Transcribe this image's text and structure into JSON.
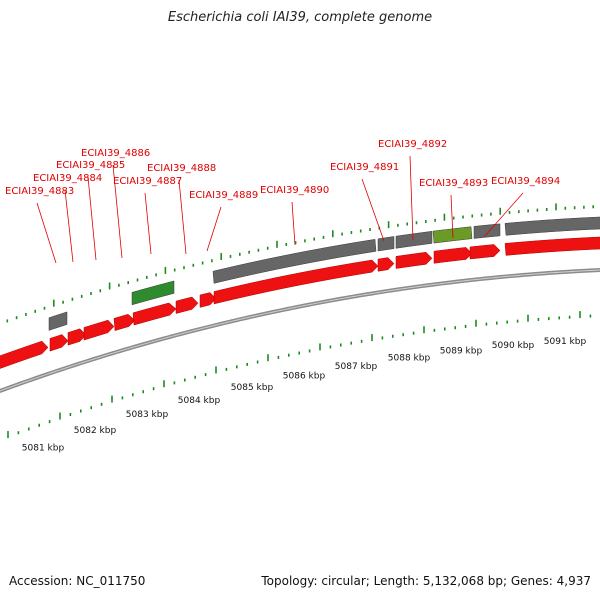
{
  "title": "Escherichia coli IAI39, complete genome",
  "footer": {
    "accession": "Accession: NC_011750",
    "summary": "Topology: circular; Length: 5,132,068 bp; Genes: 4,937"
  },
  "colors": {
    "gene_label": "#e00000",
    "forward_cds": "#ee1111",
    "reverse_gene": "#666666",
    "reverse_rna": "#2e8b2e",
    "highlight": "#6b9a25",
    "tick": "#1f8a1f",
    "track_line": "#8c8c8c"
  },
  "scale": {
    "unit": "kbp",
    "labels": [
      "5081 kbp",
      "5082 kbp",
      "5083 kbp",
      "5084 kbp",
      "5085 kbp",
      "5086 kbp",
      "5087 kbp",
      "5088 kbp",
      "5089 kbp",
      "5090 kbp",
      "5091 kbp"
    ]
  },
  "gene_labels": [
    "ECIAI39_4883",
    "ECIAI39_4884",
    "ECIAI39_4885",
    "ECIAI39_4886",
    "ECIAI39_4887",
    "ECIAI39_4888",
    "ECIAI39_4889",
    "ECIAI39_4890",
    "ECIAI39_4891",
    "ECIAI39_4892",
    "ECIAI39_4893",
    "ECIAI39_4894"
  ]
}
